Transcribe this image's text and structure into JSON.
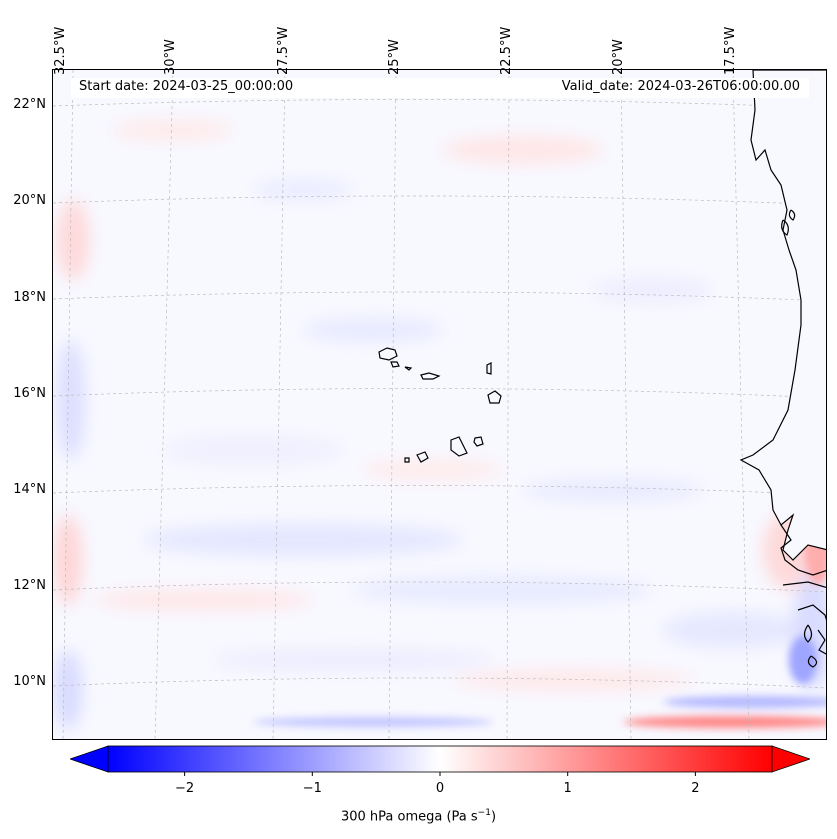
{
  "map": {
    "start_date_label": "Start date: 2024-03-25_00:00:00",
    "valid_date_label": "Valid_date: 2024-03-26T06:00:00.00",
    "lon_labels": [
      "32.5°W",
      "30°W",
      "27.5°W",
      "25°W",
      "22.5°W",
      "20°W",
      "17.5°W"
    ],
    "lat_labels": [
      "22°N",
      "20°N",
      "18°N",
      "16°N",
      "14°N",
      "12°N",
      "10°N"
    ],
    "gridlines": true,
    "colors": {
      "negative": "#0000ff",
      "zero": "#ffffff",
      "positive": "#ff0000",
      "coast": "#000000",
      "grid": "#bbbbbb"
    }
  },
  "colorbar": {
    "label": "300 hPa omega (Pa s",
    "label_superscript": "−1",
    "label_close": ")",
    "tick_labels": [
      "−2",
      "−1",
      "0",
      "1",
      "2"
    ],
    "range": [
      -2.6,
      2.6
    ],
    "ticks": [
      -2,
      -1,
      0,
      1,
      2
    ],
    "extend": "both",
    "cmap": "bwr"
  }
}
